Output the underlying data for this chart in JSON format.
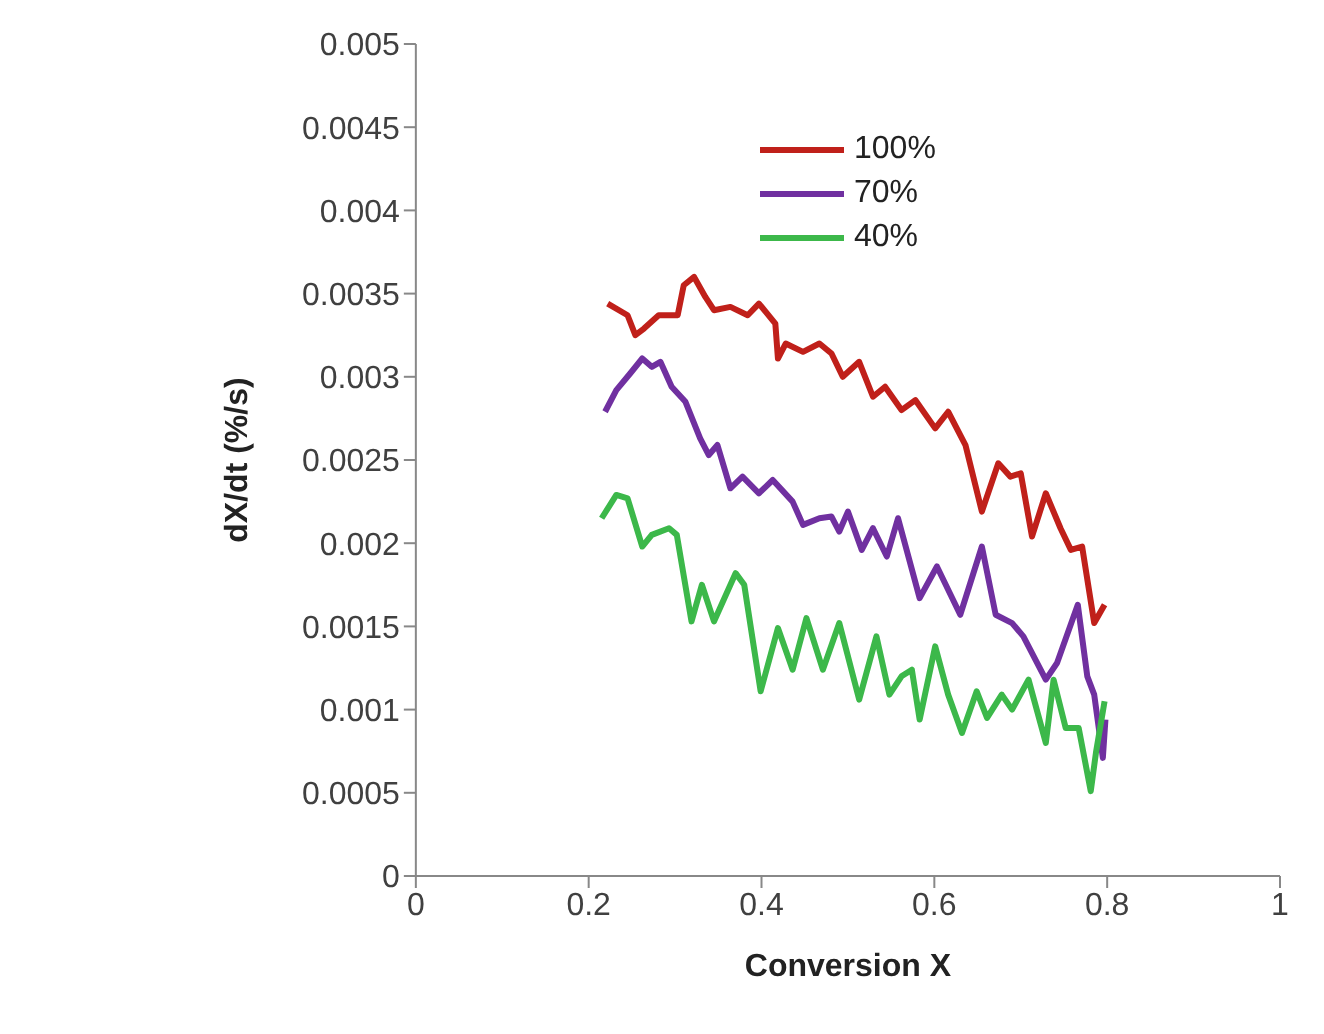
{
  "chart_data": {
    "type": "line",
    "xlabel": "Conversion X",
    "ylabel": "dX/dt (%/s)",
    "xlim": [
      0,
      1
    ],
    "xticks": [
      0,
      0.2,
      0.4,
      0.6,
      0.8,
      1
    ],
    "ylim": [
      0,
      0.005
    ],
    "yticks": [
      0,
      0.0005,
      0.001,
      0.0015,
      0.002,
      0.0025,
      0.003,
      0.0035,
      0.004,
      0.0045,
      0.005
    ],
    "grid": false,
    "legend": "top right",
    "marker": "none",
    "line_style": "solid",
    "series": [
      {
        "name": "100%",
        "color": "#c0201a",
        "x": [
          0.222,
          0.245,
          0.254,
          0.264,
          0.281,
          0.303,
          0.31,
          0.322,
          0.335,
          0.345,
          0.364,
          0.384,
          0.397,
          0.416,
          0.419,
          0.428,
          0.448,
          0.467,
          0.481,
          0.494,
          0.513,
          0.529,
          0.543,
          0.562,
          0.578,
          0.601,
          0.616,
          0.636,
          0.655,
          0.674,
          0.688,
          0.7,
          0.713,
          0.729,
          0.746,
          0.758,
          0.771,
          0.785,
          0.797
        ],
        "values": [
          0.00344,
          0.00337,
          0.00325,
          0.00329,
          0.00337,
          0.00337,
          0.00355,
          0.0036,
          0.00348,
          0.0034,
          0.00342,
          0.00337,
          0.00344,
          0.00332,
          0.00311,
          0.0032,
          0.00315,
          0.0032,
          0.00314,
          0.003,
          0.00309,
          0.00288,
          0.00294,
          0.0028,
          0.00286,
          0.00269,
          0.00279,
          0.00259,
          0.00219,
          0.00248,
          0.0024,
          0.00242,
          0.00204,
          0.0023,
          0.00209,
          0.00196,
          0.00198,
          0.00152,
          0.00163
        ]
      },
      {
        "name": "70%",
        "color": "#7030a0",
        "x": [
          0.219,
          0.232,
          0.248,
          0.262,
          0.273,
          0.283,
          0.296,
          0.312,
          0.329,
          0.339,
          0.349,
          0.364,
          0.378,
          0.397,
          0.413,
          0.436,
          0.448,
          0.467,
          0.481,
          0.49,
          0.5,
          0.516,
          0.529,
          0.545,
          0.558,
          0.583,
          0.603,
          0.63,
          0.655,
          0.671,
          0.69,
          0.703,
          0.729,
          0.742,
          0.766,
          0.777,
          0.785,
          0.795,
          0.798
        ],
        "values": [
          0.00279,
          0.00292,
          0.00302,
          0.00311,
          0.00306,
          0.00309,
          0.00294,
          0.00285,
          0.00263,
          0.00253,
          0.00259,
          0.00233,
          0.0024,
          0.0023,
          0.00238,
          0.00225,
          0.00211,
          0.00215,
          0.00216,
          0.00207,
          0.00219,
          0.00196,
          0.00209,
          0.00192,
          0.00215,
          0.00167,
          0.00186,
          0.00157,
          0.00198,
          0.00157,
          0.00152,
          0.00144,
          0.00118,
          0.00128,
          0.00163,
          0.0012,
          0.00109,
          0.00071,
          0.00094
        ]
      },
      {
        "name": "40%",
        "color": "#3cb84a",
        "x": [
          0.215,
          0.232,
          0.245,
          0.262,
          0.273,
          0.293,
          0.302,
          0.319,
          0.331,
          0.345,
          0.37,
          0.38,
          0.399,
          0.419,
          0.436,
          0.452,
          0.471,
          0.49,
          0.513,
          0.533,
          0.548,
          0.562,
          0.574,
          0.583,
          0.601,
          0.616,
          0.632,
          0.649,
          0.661,
          0.678,
          0.69,
          0.709,
          0.729,
          0.738,
          0.752,
          0.767,
          0.781,
          0.787,
          0.797
        ],
        "values": [
          0.00215,
          0.00229,
          0.00227,
          0.00198,
          0.00205,
          0.00209,
          0.00205,
          0.00153,
          0.00175,
          0.00153,
          0.00182,
          0.00175,
          0.00111,
          0.00149,
          0.00124,
          0.00155,
          0.00124,
          0.00152,
          0.00106,
          0.00144,
          0.00109,
          0.0012,
          0.00124,
          0.00094,
          0.00138,
          0.00109,
          0.00086,
          0.00111,
          0.00095,
          0.00109,
          0.001,
          0.00118,
          0.0008,
          0.00118,
          0.00089,
          0.00089,
          0.00051,
          0.00074,
          0.00105
        ]
      }
    ]
  }
}
